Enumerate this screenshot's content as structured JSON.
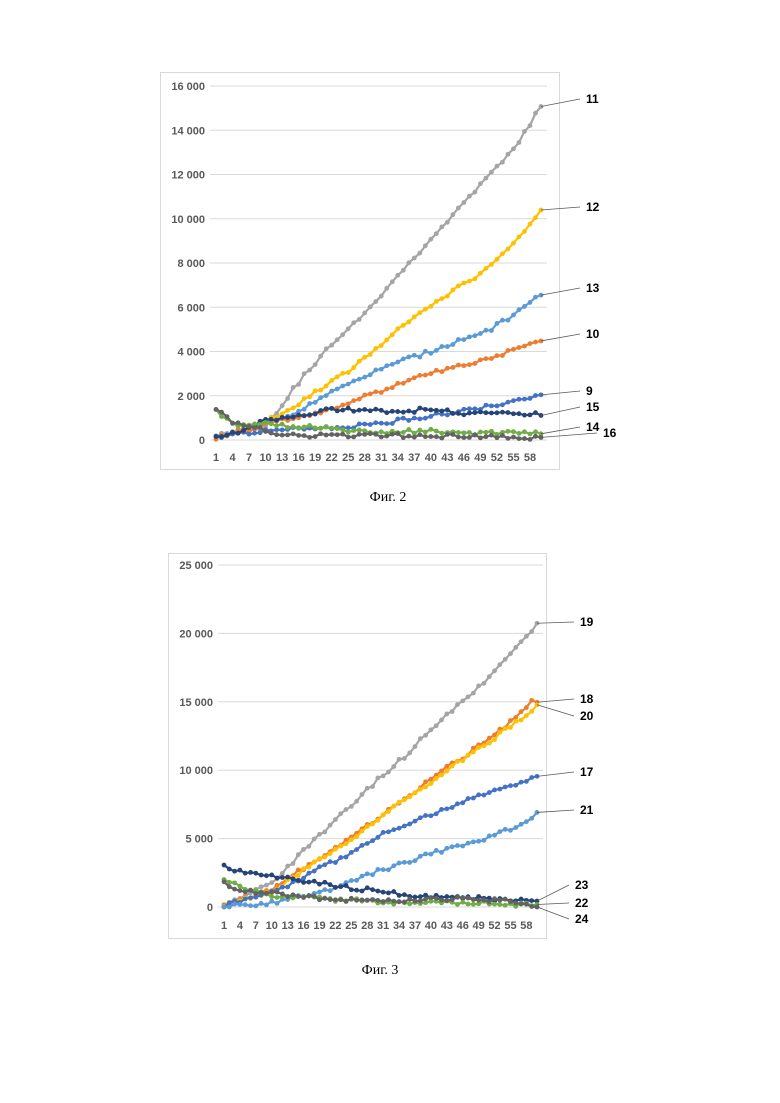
{
  "figures": [
    {
      "caption": "Фиг. 2"
    },
    {
      "caption": "Фиг. 3"
    }
  ],
  "chart_data": [
    {
      "type": "line",
      "title": "",
      "xlabel": "",
      "ylabel": "",
      "x_tick_labels": [
        "1",
        "4",
        "7",
        "10",
        "13",
        "16",
        "19",
        "22",
        "25",
        "28",
        "31",
        "34",
        "37",
        "40",
        "43",
        "46",
        "49",
        "52",
        "55",
        "58"
      ],
      "y_tick_labels": [
        "0",
        "2 000",
        "4 000",
        "6 000",
        "8 000",
        "10 000",
        "12 000",
        "14 000",
        "16 000"
      ],
      "ylim": [
        0,
        16000
      ],
      "x_count": 60,
      "grid": "horizontal",
      "series": [
        {
          "name": "11",
          "color": "#a5a5a5",
          "anchors": [
            [
              1,
              200
            ],
            [
              10,
              600
            ],
            [
              15,
              2300
            ],
            [
              20,
              3800
            ],
            [
              25,
              5000
            ],
            [
              30,
              6300
            ],
            [
              35,
              7700
            ],
            [
              40,
              9100
            ],
            [
              45,
              10400
            ],
            [
              50,
              11800
            ],
            [
              55,
              13100
            ],
            [
              60,
              15100
            ]
          ]
        },
        {
          "name": "12",
          "color": "#ffc000",
          "anchors": [
            [
              1,
              100
            ],
            [
              10,
              800
            ],
            [
              15,
              1500
            ],
            [
              20,
              2300
            ],
            [
              25,
              3100
            ],
            [
              30,
              4100
            ],
            [
              35,
              5200
            ],
            [
              40,
              6100
            ],
            [
              45,
              6900
            ],
            [
              50,
              7700
            ],
            [
              55,
              8900
            ],
            [
              60,
              10300
            ]
          ]
        },
        {
          "name": "13",
          "color": "#5b9bd5",
          "anchors": [
            [
              1,
              150
            ],
            [
              10,
              700
            ],
            [
              15,
              1200
            ],
            [
              20,
              1900
            ],
            [
              25,
              2500
            ],
            [
              30,
              3100
            ],
            [
              35,
              3600
            ],
            [
              40,
              4000
            ],
            [
              45,
              4500
            ],
            [
              50,
              4900
            ],
            [
              55,
              5600
            ],
            [
              60,
              6600
            ]
          ]
        },
        {
          "name": "10",
          "color": "#ed7d31",
          "anchors": [
            [
              1,
              100
            ],
            [
              10,
              700
            ],
            [
              15,
              1000
            ],
            [
              20,
              1300
            ],
            [
              25,
              1700
            ],
            [
              30,
              2100
            ],
            [
              35,
              2600
            ],
            [
              40,
              3000
            ],
            [
              45,
              3300
            ],
            [
              50,
              3600
            ],
            [
              55,
              4100
            ],
            [
              60,
              4500
            ]
          ]
        },
        {
          "name": "9",
          "color": "#4472c4",
          "anchors": [
            [
              1,
              100
            ],
            [
              10,
              400
            ],
            [
              15,
              500
            ],
            [
              20,
              500
            ],
            [
              25,
              600
            ],
            [
              30,
              700
            ],
            [
              35,
              900
            ],
            [
              40,
              1100
            ],
            [
              45,
              1300
            ],
            [
              50,
              1500
            ],
            [
              55,
              1700
            ],
            [
              60,
              2000
            ]
          ]
        },
        {
          "name": "15",
          "color": "#264478",
          "anchors": [
            [
              1,
              200
            ],
            [
              5,
              300
            ],
            [
              10,
              900
            ],
            [
              15,
              1100
            ],
            [
              20,
              1300
            ],
            [
              25,
              1400
            ],
            [
              30,
              1300
            ],
            [
              35,
              1300
            ],
            [
              40,
              1400
            ],
            [
              45,
              1200
            ],
            [
              50,
              1300
            ],
            [
              55,
              1200
            ],
            [
              60,
              1200
            ]
          ]
        },
        {
          "name": "14",
          "color": "#70ad47",
          "anchors": [
            [
              1,
              1300
            ],
            [
              5,
              700
            ],
            [
              10,
              800
            ],
            [
              15,
              600
            ],
            [
              20,
              600
            ],
            [
              25,
              400
            ],
            [
              30,
              300
            ],
            [
              35,
              400
            ],
            [
              40,
              400
            ],
            [
              45,
              300
            ],
            [
              50,
              300
            ],
            [
              55,
              300
            ],
            [
              60,
              300
            ]
          ]
        },
        {
          "name": "16",
          "color": "#636363",
          "anchors": [
            [
              1,
              1400
            ],
            [
              4,
              800
            ],
            [
              8,
              600
            ],
            [
              12,
              300
            ],
            [
              16,
              200
            ],
            [
              20,
              200
            ],
            [
              25,
              200
            ],
            [
              30,
              200
            ],
            [
              35,
              200
            ],
            [
              40,
              200
            ],
            [
              45,
              150
            ],
            [
              50,
              150
            ],
            [
              55,
              100
            ],
            [
              60,
              100
            ]
          ]
        }
      ]
    },
    {
      "type": "line",
      "title": "",
      "xlabel": "",
      "ylabel": "",
      "x_tick_labels": [
        "1",
        "4",
        "7",
        "10",
        "13",
        "16",
        "19",
        "22",
        "25",
        "28",
        "31",
        "34",
        "37",
        "40",
        "43",
        "46",
        "49",
        "52",
        "55",
        "58"
      ],
      "y_tick_labels": [
        "0",
        "5 000",
        "10 000",
        "15 000",
        "20 000",
        "25 000"
      ],
      "ylim": [
        0,
        25000
      ],
      "x_count": 60,
      "grid": "horizontal",
      "series": [
        {
          "name": "19",
          "color": "#a5a5a5",
          "anchors": [
            [
              1,
              200
            ],
            [
              10,
              1800
            ],
            [
              15,
              3700
            ],
            [
              20,
              5600
            ],
            [
              25,
              7500
            ],
            [
              30,
              9300
            ],
            [
              35,
              11000
            ],
            [
              40,
              13000
            ],
            [
              45,
              14800
            ],
            [
              50,
              16400
            ],
            [
              55,
              18500
            ],
            [
              60,
              20600
            ]
          ]
        },
        {
          "name": "18",
          "color": "#ed7d31",
          "anchors": [
            [
              1,
              100
            ],
            [
              10,
              1200
            ],
            [
              15,
              2600
            ],
            [
              20,
              3800
            ],
            [
              25,
              5100
            ],
            [
              30,
              6500
            ],
            [
              35,
              7900
            ],
            [
              40,
              9300
            ],
            [
              45,
              10700
            ],
            [
              50,
              12000
            ],
            [
              55,
              13500
            ],
            [
              59,
              15000
            ],
            [
              60,
              14900
            ]
          ]
        },
        {
          "name": "20",
          "color": "#ffc000",
          "anchors": [
            [
              1,
              100
            ],
            [
              10,
              1100
            ],
            [
              15,
              2400
            ],
            [
              20,
              3700
            ],
            [
              25,
              5000
            ],
            [
              30,
              6400
            ],
            [
              35,
              7800
            ],
            [
              40,
              9100
            ],
            [
              45,
              10500
            ],
            [
              50,
              11800
            ],
            [
              55,
              13200
            ],
            [
              60,
              14700
            ]
          ]
        },
        {
          "name": "17",
          "color": "#4472c4",
          "anchors": [
            [
              1,
              100
            ],
            [
              10,
              1000
            ],
            [
              15,
              2000
            ],
            [
              20,
              3000
            ],
            [
              25,
              4000
            ],
            [
              30,
              5200
            ],
            [
              35,
              6000
            ],
            [
              40,
              6800
            ],
            [
              45,
              7500
            ],
            [
              50,
              8200
            ],
            [
              55,
              8900
            ],
            [
              60,
              9500
            ]
          ]
        },
        {
          "name": "21",
          "color": "#5b9bd5",
          "anchors": [
            [
              1,
              50
            ],
            [
              10,
              300
            ],
            [
              15,
              700
            ],
            [
              20,
              1200
            ],
            [
              25,
              1900
            ],
            [
              30,
              2600
            ],
            [
              35,
              3200
            ],
            [
              40,
              3900
            ],
            [
              45,
              4500
            ],
            [
              50,
              5000
            ],
            [
              55,
              5700
            ],
            [
              60,
              6800
            ]
          ]
        },
        {
          "name": "23",
          "color": "#264478",
          "anchors": [
            [
              1,
              3000
            ],
            [
              5,
              2500
            ],
            [
              10,
              2200
            ],
            [
              15,
              2000
            ],
            [
              20,
              1700
            ],
            [
              25,
              1400
            ],
            [
              30,
              1200
            ],
            [
              35,
              900
            ],
            [
              40,
              800
            ],
            [
              45,
              700
            ],
            [
              50,
              600
            ],
            [
              55,
              500
            ],
            [
              60,
              400
            ]
          ]
        },
        {
          "name": "22",
          "color": "#70ad47",
          "anchors": [
            [
              1,
              1900
            ],
            [
              5,
              1400
            ],
            [
              10,
              800
            ],
            [
              15,
              700
            ],
            [
              20,
              600
            ],
            [
              25,
              500
            ],
            [
              30,
              400
            ],
            [
              35,
              300
            ],
            [
              40,
              300
            ],
            [
              45,
              300
            ],
            [
              50,
              300
            ],
            [
              55,
              200
            ],
            [
              60,
              200
            ]
          ]
        },
        {
          "name": "24",
          "color": "#636363",
          "anchors": [
            [
              1,
              1700
            ],
            [
              5,
              1200
            ],
            [
              10,
              1000
            ],
            [
              15,
              800
            ],
            [
              20,
              600
            ],
            [
              25,
              500
            ],
            [
              30,
              500
            ],
            [
              35,
              500
            ],
            [
              40,
              600
            ],
            [
              45,
              600
            ],
            [
              50,
              500
            ],
            [
              55,
              500
            ],
            [
              60,
              0
            ]
          ]
        }
      ]
    }
  ]
}
